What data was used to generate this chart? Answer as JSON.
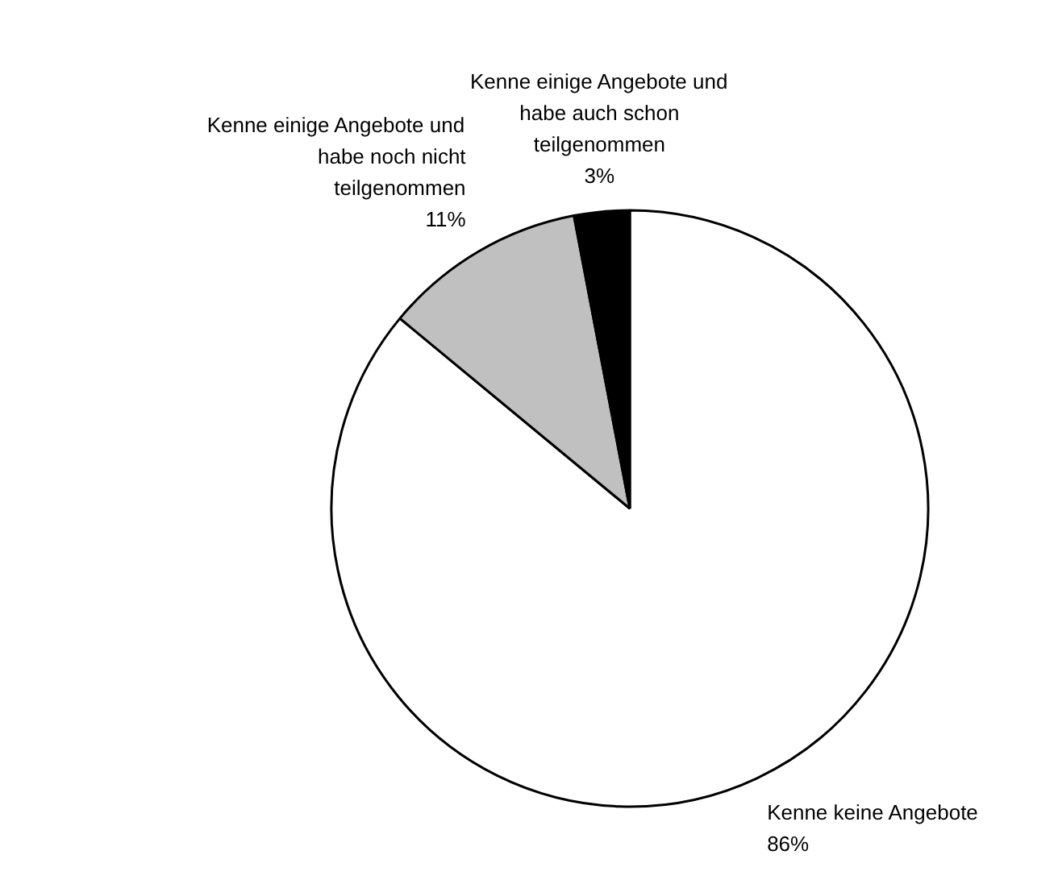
{
  "chart_data": {
    "type": "pie",
    "categories": [
      "Kenne keine Angebote",
      "Kenne einige Angebote und habe noch nicht teilgenommen",
      "Kenne einige Angebote und habe auch schon teilgenommen"
    ],
    "values": [
      86,
      11,
      3
    ],
    "colors": [
      "#ffffff",
      "#c0c0c0",
      "#000000"
    ],
    "value_labels": [
      "86%",
      "11%",
      "3%"
    ]
  }
}
